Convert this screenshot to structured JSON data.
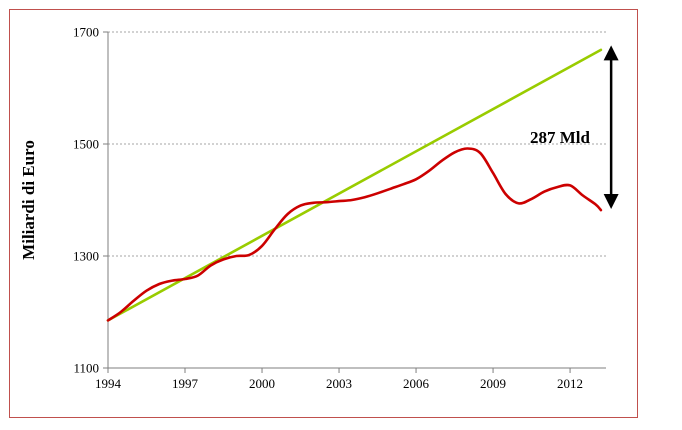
{
  "chart_data": {
    "type": "line",
    "title": "",
    "xlabel": "",
    "ylabel": "Miliardi  di  Euro",
    "xlim": [
      1994,
      2013.4
    ],
    "ylim": [
      1100,
      1700
    ],
    "x_ticks": [
      1994,
      1997,
      2000,
      2003,
      2006,
      2009,
      2012
    ],
    "y_ticks": [
      1100,
      1300,
      1500,
      1700
    ],
    "grid": "horizontal-dotted",
    "legend": "none",
    "series": [
      {
        "color": "#cc0000",
        "x": [
          1994,
          1994.5,
          1995,
          1995.5,
          1996,
          1996.5,
          1997,
          1997.5,
          1998,
          1998.5,
          1999,
          1999.5,
          2000,
          2000.5,
          2001,
          2001.5,
          2002,
          2002.5,
          2003,
          2003.5,
          2004,
          2004.5,
          2005,
          2005.5,
          2006,
          2006.5,
          2007,
          2007.5,
          2008,
          2008.5,
          2009,
          2009.5,
          2010,
          2010.5,
          2011,
          2011.5,
          2012,
          2012.5,
          2013,
          2013.2
        ],
        "values": [
          1185,
          1200,
          1220,
          1238,
          1250,
          1256,
          1259,
          1265,
          1283,
          1294,
          1300,
          1302,
          1318,
          1348,
          1375,
          1390,
          1395,
          1396,
          1398,
          1400,
          1405,
          1412,
          1420,
          1428,
          1437,
          1452,
          1470,
          1485,
          1492,
          1484,
          1448,
          1410,
          1394,
          1402,
          1415,
          1423,
          1426,
          1408,
          1392,
          1382
        ]
      },
      {
        "color": "#99cc00",
        "x": [
          1994,
          2013.2
        ],
        "values": [
          1185,
          1668
        ]
      }
    ],
    "annotations": [
      {
        "text": "287 Mld",
        "color": "#000000"
      }
    ],
    "arrow": {
      "x": 2013.6,
      "from_value": 1392,
      "to_value": 1668,
      "color": "#000000"
    }
  }
}
